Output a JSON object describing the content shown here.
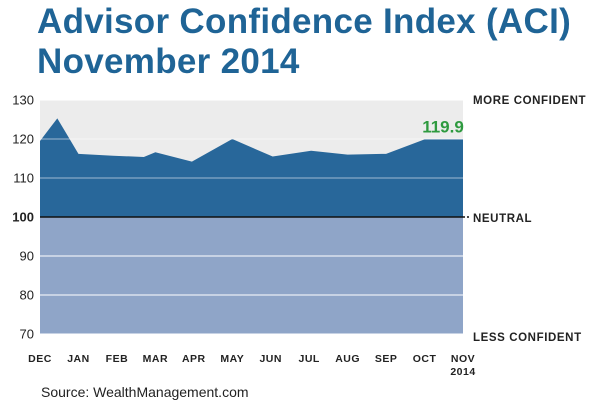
{
  "title_line1": "Advisor Confidence Index (ACI)",
  "title_line2": "November 2014",
  "source": "Source: WealthManagement.com",
  "colors": {
    "title": "#1f6496",
    "area": "#28679a",
    "below_neutral": "#8fa5c8",
    "upper_bg": "#ececec",
    "last_value_label": "#2e9a3f"
  },
  "chart_data": {
    "type": "area",
    "title": "Advisor Confidence Index (ACI)",
    "subtitle": "November 2014",
    "x_tick_labels": [
      "DEC",
      "JAN",
      "FEB",
      "MAR",
      "APR",
      "MAY",
      "JUN",
      "JUL",
      "AUG",
      "SEP",
      "OCT",
      "NOV",
      "2014"
    ],
    "x": [
      0,
      0.45,
      1,
      1.9,
      2.7,
      3,
      3.95,
      5,
      6.05,
      7.05,
      8,
      9,
      10,
      11
    ],
    "values": [
      119.5,
      125.3,
      116.2,
      115.7,
      115.4,
      116.6,
      114.2,
      120.0,
      115.5,
      117.0,
      116.0,
      116.2,
      119.9,
      119.9
    ],
    "y_ticks": [
      70,
      80,
      90,
      100,
      110,
      120,
      130
    ],
    "ylim": [
      70,
      130
    ],
    "neutral_value": 100,
    "side_labels": {
      "top": "MORE CONFIDENT",
      "middle": "NEUTRAL",
      "bottom": "LESS CONFIDENT"
    },
    "last_value_label": "119.9",
    "grid": true
  }
}
